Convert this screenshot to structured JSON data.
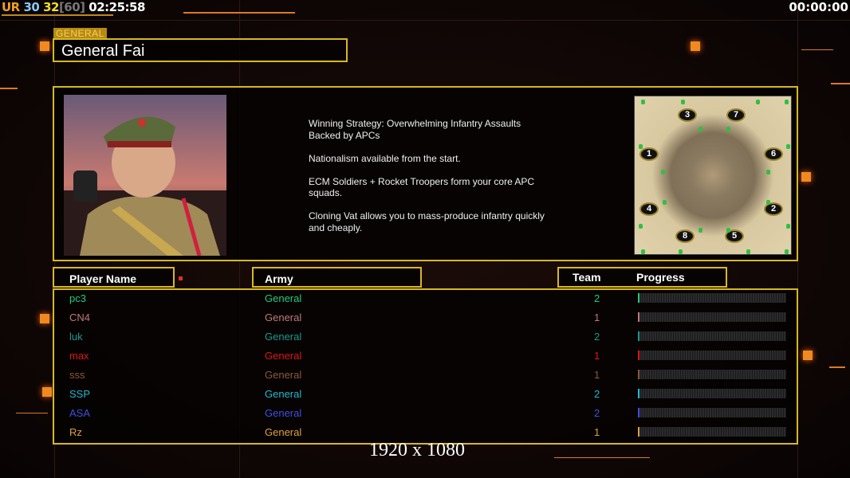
{
  "hud": {
    "ur": "UR",
    "fps_a": "30",
    "fps_b": "32",
    "fps_cap": "[60]",
    "time": "02:25:58",
    "clock": "00:00:00"
  },
  "general": {
    "tag": "GENERAL",
    "name": "General Fai"
  },
  "description": "Winning Strategy: Overwhelming Infantry Assaults\n Backed by APCs\n\nNationalism available from the start.\n\nECM Soldiers + Rocket Troopers form your core APC\n squads.\n\nCloning Vat allows you to mass-produce infantry quickly\n and cheaply.",
  "map": {
    "start_positions": [
      "3",
      "7",
      "1",
      "6",
      "4",
      "2",
      "8",
      "5"
    ]
  },
  "headers": {
    "player": "Player Name",
    "army": "Army",
    "team": "Team",
    "progress": "Progress"
  },
  "players": [
    {
      "name": "pc3",
      "army": "General",
      "team": "2",
      "progress": 1,
      "color": "#22cc77"
    },
    {
      "name": "CN4",
      "army": "General",
      "team": "1",
      "progress": 0.5,
      "color": "#c07878"
    },
    {
      "name": "luk",
      "army": "General",
      "team": "2",
      "progress": 0.5,
      "color": "#1a9890"
    },
    {
      "name": "max",
      "army": "General",
      "team": "1",
      "progress": 0.5,
      "color": "#e01414"
    },
    {
      "name": "sss",
      "army": "General",
      "team": "1",
      "progress": 0.5,
      "color": "#8a5a3a"
    },
    {
      "name": "SSP",
      "army": "General",
      "team": "2",
      "progress": 1,
      "color": "#22b8d0"
    },
    {
      "name": "ASA",
      "army": "General",
      "team": "2",
      "progress": 0.5,
      "color": "#4050e0"
    },
    {
      "name": "Rz",
      "army": "General",
      "team": "1",
      "progress": 0.5,
      "color": "#e0a040"
    }
  ],
  "footer": {
    "resolution": "1920 x 1080"
  },
  "colors": {
    "frame": "#d8b820",
    "accent": "#f08a20"
  }
}
